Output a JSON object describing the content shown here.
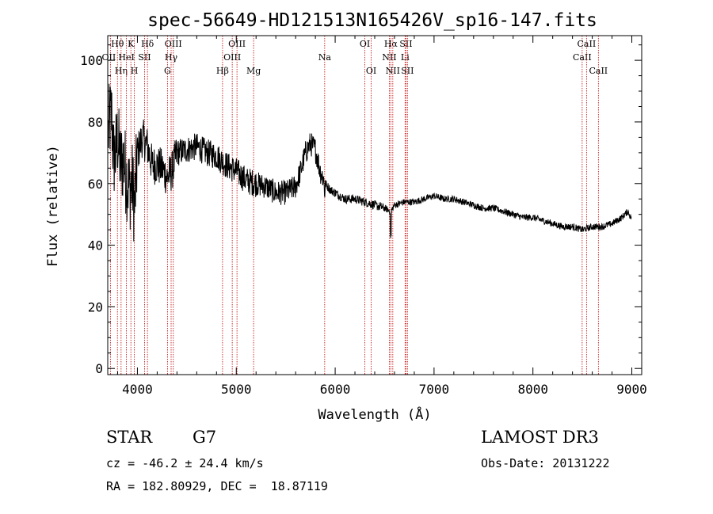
{
  "chart_data": {
    "type": "line",
    "title": "spec-56649-HD121513N165426V_sp16-147.fits",
    "xlabel": "Wavelength (Å)",
    "ylabel": "Flux (relative)",
    "xlim": [
      3700,
      9100
    ],
    "ylim": [
      -2,
      108
    ],
    "x_ticks": [
      4000,
      5000,
      6000,
      7000,
      8000,
      9000
    ],
    "x_tick_labels": [
      "4000",
      "5000",
      "6000",
      "7000",
      "8000",
      "9000"
    ],
    "y_ticks": [
      0,
      20,
      40,
      60,
      80,
      100
    ],
    "y_tick_labels": [
      "0",
      "20",
      "40",
      "60",
      "80",
      "100"
    ],
    "continuum": {
      "x": [
        3700,
        3720,
        3740,
        3760,
        3780,
        3800,
        3830,
        3860,
        3890,
        3920,
        3950,
        3970,
        4000,
        4050,
        4100,
        4150,
        4200,
        4250,
        4300,
        4350,
        4400,
        4500,
        4600,
        4700,
        4800,
        4900,
        5000,
        5100,
        5200,
        5300,
        5400,
        5500,
        5600,
        5650,
        5700,
        5750,
        5800,
        5850,
        5900,
        5950,
        6000,
        6100,
        6200,
        6300,
        6400,
        6500,
        6563,
        6600,
        6700,
        6800,
        6900,
        7000,
        7100,
        7200,
        7300,
        7400,
        7500,
        7600,
        7700,
        7800,
        7900,
        8000,
        8100,
        8200,
        8300,
        8400,
        8500,
        8600,
        8700,
        8800,
        8900,
        8960,
        8990
      ],
      "y": [
        75,
        80,
        82,
        68,
        70,
        75,
        66,
        68,
        62,
        58,
        60,
        52,
        70,
        75,
        72,
        66,
        66,
        65,
        62,
        64,
        70,
        71,
        72,
        70,
        69,
        66,
        64,
        61,
        60,
        59,
        57,
        57,
        59,
        64,
        70,
        73,
        71,
        64,
        60,
        58,
        57,
        55,
        55,
        54,
        53,
        52,
        51,
        53,
        54,
        54,
        55,
        56,
        55,
        55,
        54,
        53,
        52,
        52,
        51,
        50,
        49,
        49,
        48,
        47,
        46,
        46,
        45,
        46,
        46,
        47,
        49,
        51,
        49
      ]
    },
    "lines": [
      {
        "name": "OII",
        "wavelength": 3727,
        "row": 2,
        "label_dx": -2
      },
      {
        "name": "Hθ",
        "wavelength": 3798,
        "row": 1,
        "label_dx": 0
      },
      {
        "name": "Hη",
        "wavelength": 3835,
        "row": 3,
        "label_dx": 0
      },
      {
        "name": "HeI",
        "wavelength": 3889,
        "row": 2,
        "label_dx": 0
      },
      {
        "name": "K",
        "wavelength": 3934,
        "row": 1,
        "label_dx": 0
      },
      {
        "name": "H",
        "wavelength": 3969,
        "row": 3,
        "label_dx": 0
      },
      {
        "name": "SII",
        "wavelength": 4072,
        "row": 2,
        "label_dx": 0
      },
      {
        "name": "Hδ",
        "wavelength": 4102,
        "row": 1,
        "label_dx": 0
      },
      {
        "name": "G",
        "wavelength": 4304,
        "row": 3,
        "label_dx": 0
      },
      {
        "name": "Hγ",
        "wavelength": 4341,
        "row": 2,
        "label_dx": 0
      },
      {
        "name": "OIII",
        "wavelength": 4363,
        "row": 1,
        "label_dx": 0
      },
      {
        "name": "Hβ",
        "wavelength": 4861,
        "row": 3,
        "label_dx": 0
      },
      {
        "name": "OIII",
        "wavelength": 4959,
        "row": 2,
        "label_dx": 0
      },
      {
        "name": "OIII",
        "wavelength": 5007,
        "row": 1,
        "label_dx": 0
      },
      {
        "name": "Mg",
        "wavelength": 5175,
        "row": 3,
        "label_dx": 0
      },
      {
        "name": "Na",
        "wavelength": 5894,
        "row": 2,
        "label_dx": 0
      },
      {
        "name": "OI",
        "wavelength": 6300,
        "row": 1,
        "label_dx": 0
      },
      {
        "name": "OI",
        "wavelength": 6364,
        "row": 3,
        "label_dx": 0
      },
      {
        "name": "NII",
        "wavelength": 6548,
        "row": 2,
        "label_dx": 0
      },
      {
        "name": "Hα",
        "wavelength": 6563,
        "row": 1,
        "label_dx": 0
      },
      {
        "name": "NII",
        "wavelength": 6583,
        "row": 3,
        "label_dx": 0
      },
      {
        "name": "Li",
        "wavelength": 6707,
        "row": 2,
        "label_dx": 0
      },
      {
        "name": "SII",
        "wavelength": 6716,
        "row": 1,
        "label_dx": 0
      },
      {
        "name": "SII",
        "wavelength": 6731,
        "row": 3,
        "label_dx": 0
      },
      {
        "name": "CaII",
        "wavelength": 8498,
        "row": 2,
        "label_dx": 0
      },
      {
        "name": "CaII",
        "wavelength": 8542,
        "row": 1,
        "label_dx": 0
      },
      {
        "name": "CaII",
        "wavelength": 8662,
        "row": 3,
        "label_dx": 0
      }
    ]
  },
  "info": {
    "object_class": "STAR",
    "subclass": "G7",
    "survey": "LAMOST DR3",
    "redshift": "cz = -46.2 ± 24.4 km/s",
    "obs_date": "Obs-Date: 20131222",
    "coords": "RA = 182.80929, DEC =  18.87119"
  }
}
